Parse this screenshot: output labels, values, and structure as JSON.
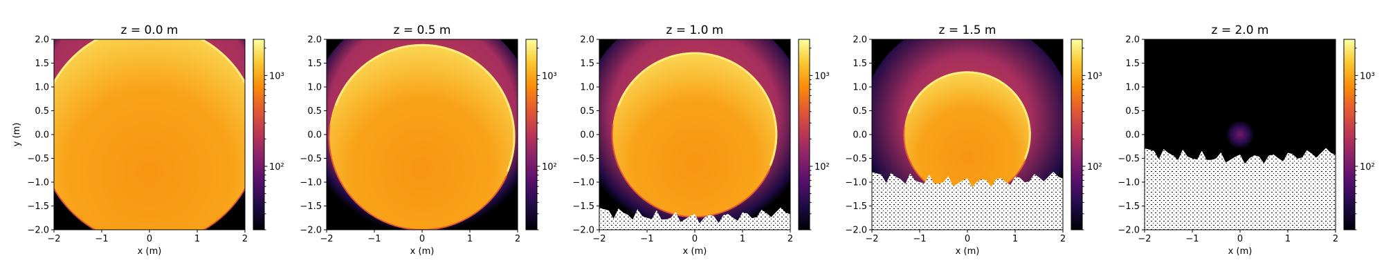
{
  "chart_data": {
    "type": "heatmap",
    "description_units": "Intensity maps over x-y plane at increasing z; color scale is logarithmic",
    "colormap": "inferno",
    "color_scale": "log",
    "xlabel": "x (m)",
    "ylabel": "y (m)",
    "xlim": [
      -2,
      2
    ],
    "ylim": [
      -2,
      2
    ],
    "x_ticks": [
      -2,
      -1,
      0,
      1,
      2
    ],
    "x_tick_labels": [
      "−2",
      "−1",
      "0",
      "1",
      "2"
    ],
    "y_ticks": [
      -2.0,
      -1.5,
      -1.0,
      -0.5,
      0.0,
      0.5,
      1.0,
      1.5,
      2.0
    ],
    "y_tick_labels": [
      "−2.0",
      "−1.5",
      "−1.0",
      "−0.5",
      "0.0",
      "0.5",
      "1.0",
      "1.5",
      "2.0"
    ],
    "colorbar": {
      "vmin": 20,
      "vmax": 2500,
      "major_ticks": [
        100,
        1000
      ],
      "major_tick_labels": [
        "10²",
        "10³"
      ]
    },
    "panels": [
      {
        "title": "z = 0.0 m",
        "circle": {
          "cx": 0.0,
          "cy": 0.0,
          "r": 2.3
        },
        "halo": 0.35,
        "empty_below": null
      },
      {
        "title": "z = 0.5 m",
        "circle": {
          "cx": 0.0,
          "cy": -0.05,
          "r": 1.95
        },
        "halo": 0.45,
        "empty_below": null
      },
      {
        "title": "z = 1.0 m",
        "circle": {
          "cx": 0.0,
          "cy": 0.0,
          "r": 1.73
        },
        "halo": 0.65,
        "empty_below": -1.75
      },
      {
        "title": "z = 1.5 m",
        "circle": {
          "cx": 0.0,
          "cy": 0.0,
          "r": 1.33
        },
        "halo": 0.9,
        "empty_below": -1.0
      },
      {
        "title": "z = 2.0 m",
        "circle": null,
        "faint_blob": {
          "cx": 0.0,
          "cy": 0.0,
          "r": 0.3
        },
        "empty_below": -0.5
      }
    ]
  }
}
